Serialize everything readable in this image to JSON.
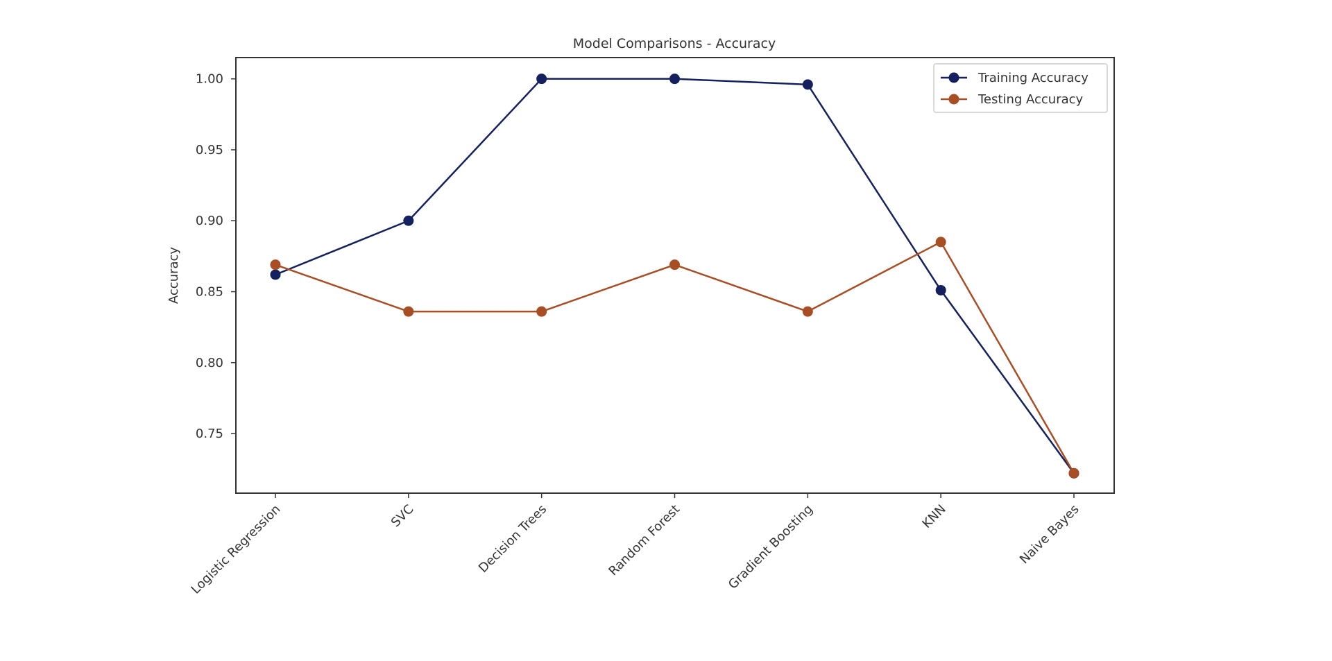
{
  "chart_data": {
    "type": "line",
    "title": "Model Comparisons - Accuracy",
    "xlabel": "",
    "ylabel": "Accuracy",
    "categories": [
      "Logistic Regression",
      "SVC",
      "Decision Trees",
      "Random Forest",
      "Gradient Boosting",
      "KNN",
      "Naive Bayes"
    ],
    "series": [
      {
        "name": "Training Accuracy",
        "color": "#14215e",
        "marker": "circle",
        "values": [
          0.862,
          0.9,
          1.0,
          1.0,
          0.996,
          0.851,
          0.722
        ]
      },
      {
        "name": "Testing Accuracy",
        "color": "#a84e25",
        "marker": "circle",
        "values": [
          0.869,
          0.836,
          0.836,
          0.869,
          0.836,
          0.885,
          0.722
        ]
      }
    ],
    "ylim": [
      0.708,
      1.015
    ],
    "yticks": [
      0.75,
      0.8,
      0.85,
      0.9,
      0.95,
      1.0
    ],
    "ytick_labels": [
      "0.75",
      "0.80",
      "0.85",
      "0.90",
      "0.95",
      "1.00"
    ],
    "grid": false,
    "legend": "top-right",
    "xtick_rotation": 45
  }
}
